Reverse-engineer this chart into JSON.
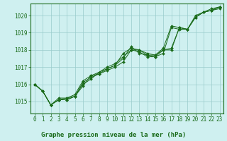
{
  "title": "Graphe pression niveau de la mer (hPa)",
  "bg_color": "#cff0f0",
  "grid_color": "#99cccc",
  "line_color": "#1a6b1a",
  "marker_color": "#1a6b1a",
  "text_color": "#1a6b1a",
  "xlabel_color": "#1a6b1a",
  "border_color": "#1a6b1a",
  "xlim": [
    -0.5,
    23.5
  ],
  "ylim": [
    1014.3,
    1020.7
  ],
  "yticks": [
    1015,
    1016,
    1017,
    1018,
    1019,
    1020
  ],
  "xtick_labels": [
    "0",
    "1",
    "2",
    "3",
    "4",
    "5",
    "6",
    "7",
    "8",
    "9",
    "10",
    "11",
    "12",
    "13",
    "14",
    "15",
    "16",
    "17",
    "18",
    "19",
    "20",
    "21",
    "22",
    "23"
  ],
  "series": [
    [
      1016.0,
      1015.6,
      1014.8,
      1015.1,
      1015.1,
      1015.3,
      1016.1,
      1016.4,
      1016.6,
      1016.8,
      1017.0,
      1017.3,
      1018.0,
      1017.9,
      1017.6,
      1017.6,
      1018.0,
      1018.0,
      1019.3,
      1019.2,
      1019.9,
      1020.2,
      1020.3,
      1020.4
    ],
    [
      1016.0,
      1015.6,
      1014.8,
      1015.1,
      1015.2,
      1015.3,
      1016.0,
      1016.3,
      1016.7,
      1016.9,
      1017.1,
      1017.8,
      1018.1,
      1018.0,
      1017.7,
      1017.6,
      1017.8,
      1019.3,
      1019.2,
      1019.2,
      1019.9,
      1020.2,
      1020.3,
      1020.5
    ],
    [
      1016.0,
      1015.6,
      1014.8,
      1015.1,
      1015.1,
      1015.3,
      1015.9,
      1016.5,
      1016.6,
      1016.9,
      1017.1,
      1017.5,
      1018.2,
      1017.8,
      1017.7,
      1017.7,
      1018.1,
      1019.4,
      1019.3,
      1019.2,
      1019.9,
      1020.2,
      1020.4,
      1020.5
    ],
    [
      1016.0,
      1015.6,
      1014.8,
      1015.2,
      1015.2,
      1015.4,
      1016.2,
      1016.5,
      1016.7,
      1017.0,
      1017.2,
      1017.6,
      1018.0,
      1018.0,
      1017.8,
      1017.7,
      1018.0,
      1018.1,
      1019.3,
      1019.2,
      1020.0,
      1020.2,
      1020.3,
      1020.5
    ]
  ],
  "figsize": [
    3.2,
    2.0
  ],
  "dpi": 100
}
